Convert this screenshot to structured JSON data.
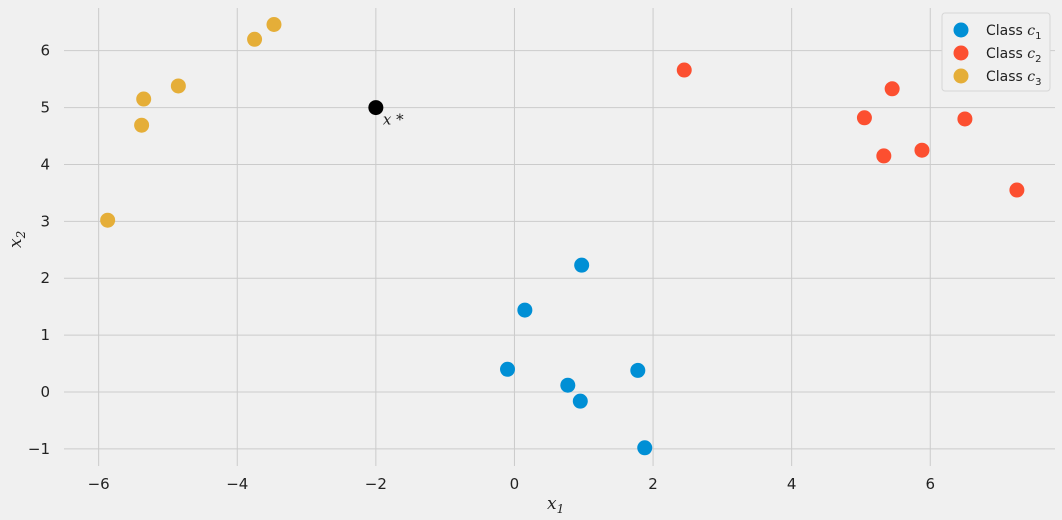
{
  "chart_data": {
    "type": "scatter",
    "title": "",
    "xlabel": "x",
    "xlabel_sub": "1",
    "ylabel": "x",
    "ylabel_sub": "2",
    "xlim": [
      -6.5,
      7.8
    ],
    "ylim": [
      -1.3,
      6.75
    ],
    "xticks": [
      -6,
      -4,
      -2,
      0,
      2,
      4,
      6
    ],
    "yticks": [
      -1,
      0,
      1,
      2,
      3,
      4,
      5,
      6
    ],
    "grid": true,
    "legend_position": "top-right",
    "series": [
      {
        "name": "Class c",
        "name_sub": "1",
        "color": "#008fd5",
        "points": [
          [
            0.97,
            2.23
          ],
          [
            0.15,
            1.44
          ],
          [
            -0.1,
            0.4
          ],
          [
            0.77,
            0.12
          ],
          [
            0.95,
            -0.16
          ],
          [
            1.78,
            0.38
          ],
          [
            1.88,
            -0.98
          ]
        ]
      },
      {
        "name": "Class c",
        "name_sub": "2",
        "color": "#fc4f30",
        "points": [
          [
            2.45,
            5.66
          ],
          [
            5.05,
            4.82
          ],
          [
            5.45,
            5.33
          ],
          [
            5.33,
            4.15
          ],
          [
            5.88,
            4.25
          ],
          [
            6.5,
            4.8
          ],
          [
            7.25,
            3.55
          ]
        ]
      },
      {
        "name": "Class c",
        "name_sub": "3",
        "color": "#e5ae38",
        "points": [
          [
            -3.47,
            6.46
          ],
          [
            -3.75,
            6.2
          ],
          [
            -5.35,
            5.15
          ],
          [
            -4.85,
            5.38
          ],
          [
            -5.38,
            4.69
          ],
          [
            -5.87,
            3.02
          ]
        ]
      }
    ],
    "query_point": {
      "x": -2.0,
      "y": 5.0,
      "color": "#000000",
      "label": "x *"
    }
  }
}
